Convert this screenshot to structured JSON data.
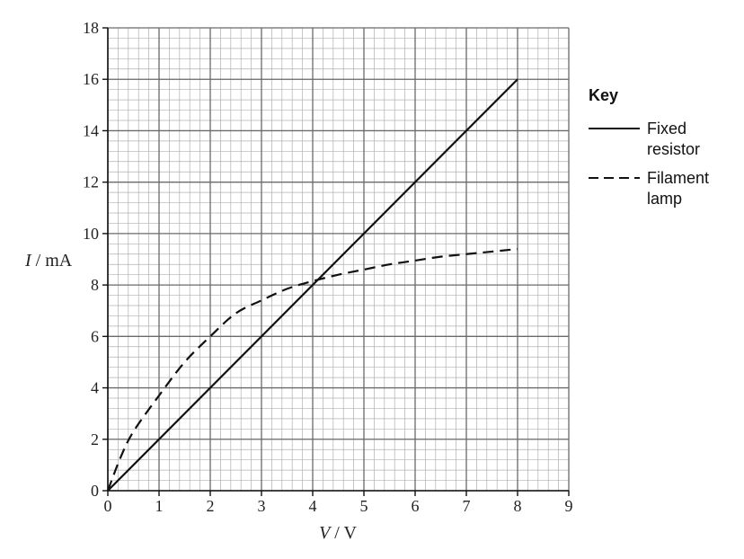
{
  "chart_data": {
    "type": "line",
    "xlabel": {
      "symbol": "V",
      "unit": " / V"
    },
    "ylabel": {
      "symbol": "I",
      "unit": " / mA"
    },
    "xlim": [
      0,
      9
    ],
    "ylim": [
      0,
      18
    ],
    "x_ticks": [
      "0",
      "1",
      "2",
      "3",
      "4",
      "5",
      "6",
      "7",
      "8",
      "9"
    ],
    "y_ticks": [
      "0",
      "2",
      "4",
      "6",
      "8",
      "10",
      "12",
      "14",
      "16",
      "18"
    ],
    "grid": true,
    "minor_grid_divisions": 5,
    "legend": {
      "title": "Key",
      "position": "right",
      "entries": [
        {
          "style": "solid",
          "lines": [
            "Fixed",
            "resistor"
          ]
        },
        {
          "style": "dashed",
          "lines": [
            "Filament",
            "lamp"
          ]
        }
      ]
    },
    "series": [
      {
        "name": "Fixed resistor",
        "style": "solid",
        "x": [
          0,
          8
        ],
        "y": [
          0,
          16
        ]
      },
      {
        "name": "Filament lamp",
        "style": "dashed",
        "x": [
          0,
          0.25,
          0.5,
          1,
          1.5,
          2,
          2.5,
          3,
          3.5,
          4,
          4.5,
          5,
          5.5,
          6,
          6.5,
          7,
          7.5,
          8
        ],
        "y": [
          0,
          1.3,
          2.3,
          3.7,
          5.0,
          6.0,
          6.9,
          7.4,
          7.85,
          8.15,
          8.4,
          8.6,
          8.8,
          8.95,
          9.1,
          9.2,
          9.3,
          9.4
        ]
      }
    ]
  }
}
